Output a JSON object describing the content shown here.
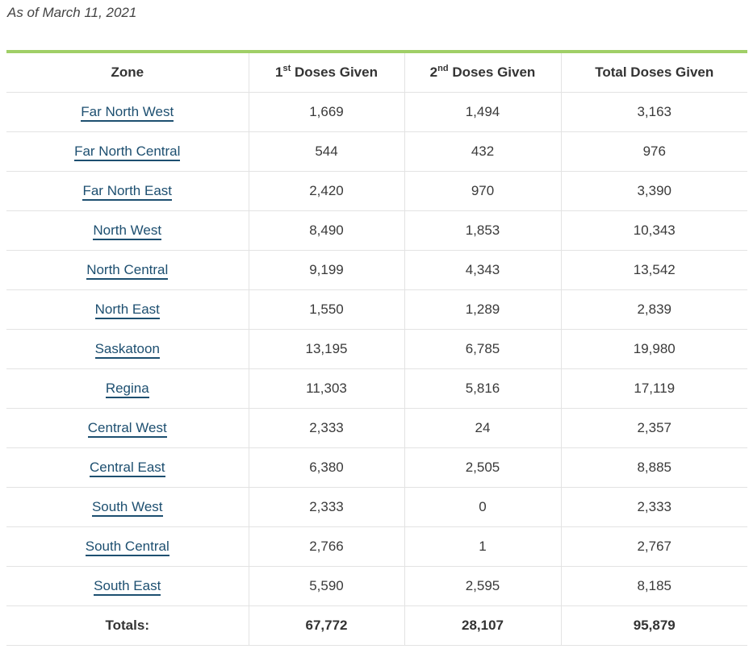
{
  "as_of": "As of March 11, 2021",
  "table": {
    "headers": {
      "zone": "Zone",
      "first_num": "1",
      "first_sup": "st",
      "first_rest": " Doses Given",
      "second_num": "2",
      "second_sup": "nd",
      "second_rest": " Doses Given",
      "total": "Total Doses Given"
    },
    "rows": [
      {
        "zone": "Far North West",
        "first": "1,669",
        "second": "1,494",
        "total": "3,163"
      },
      {
        "zone": "Far North Central",
        "first": "544",
        "second": "432",
        "total": "976"
      },
      {
        "zone": "Far North East",
        "first": "2,420",
        "second": "970",
        "total": "3,390"
      },
      {
        "zone": "North West",
        "first": "8,490",
        "second": "1,853",
        "total": "10,343"
      },
      {
        "zone": "North Central",
        "first": "9,199",
        "second": "4,343",
        "total": "13,542"
      },
      {
        "zone": "North East",
        "first": "1,550",
        "second": "1,289",
        "total": "2,839"
      },
      {
        "zone": "Saskatoon",
        "first": "13,195",
        "second": "6,785",
        "total": "19,980"
      },
      {
        "zone": "Regina",
        "first": "11,303",
        "second": "5,816",
        "total": "17,119"
      },
      {
        "zone": "Central West",
        "first": "2,333",
        "second": "24",
        "total": "2,357"
      },
      {
        "zone": "Central East",
        "first": "6,380",
        "second": "2,505",
        "total": "8,885"
      },
      {
        "zone": "South West",
        "first": "2,333",
        "second": "0",
        "total": "2,333"
      },
      {
        "zone": "South Central",
        "first": "2,766",
        "second": "1",
        "total": "2,767"
      },
      {
        "zone": "South East",
        "first": "5,590",
        "second": "2,595",
        "total": "8,185"
      }
    ],
    "totals": {
      "label": "Totals:",
      "first": "67,772",
      "second": "28,107",
      "total": "95,879"
    }
  },
  "colors": {
    "accent_rule": "#a0cf67",
    "link": "#1d4f70"
  }
}
